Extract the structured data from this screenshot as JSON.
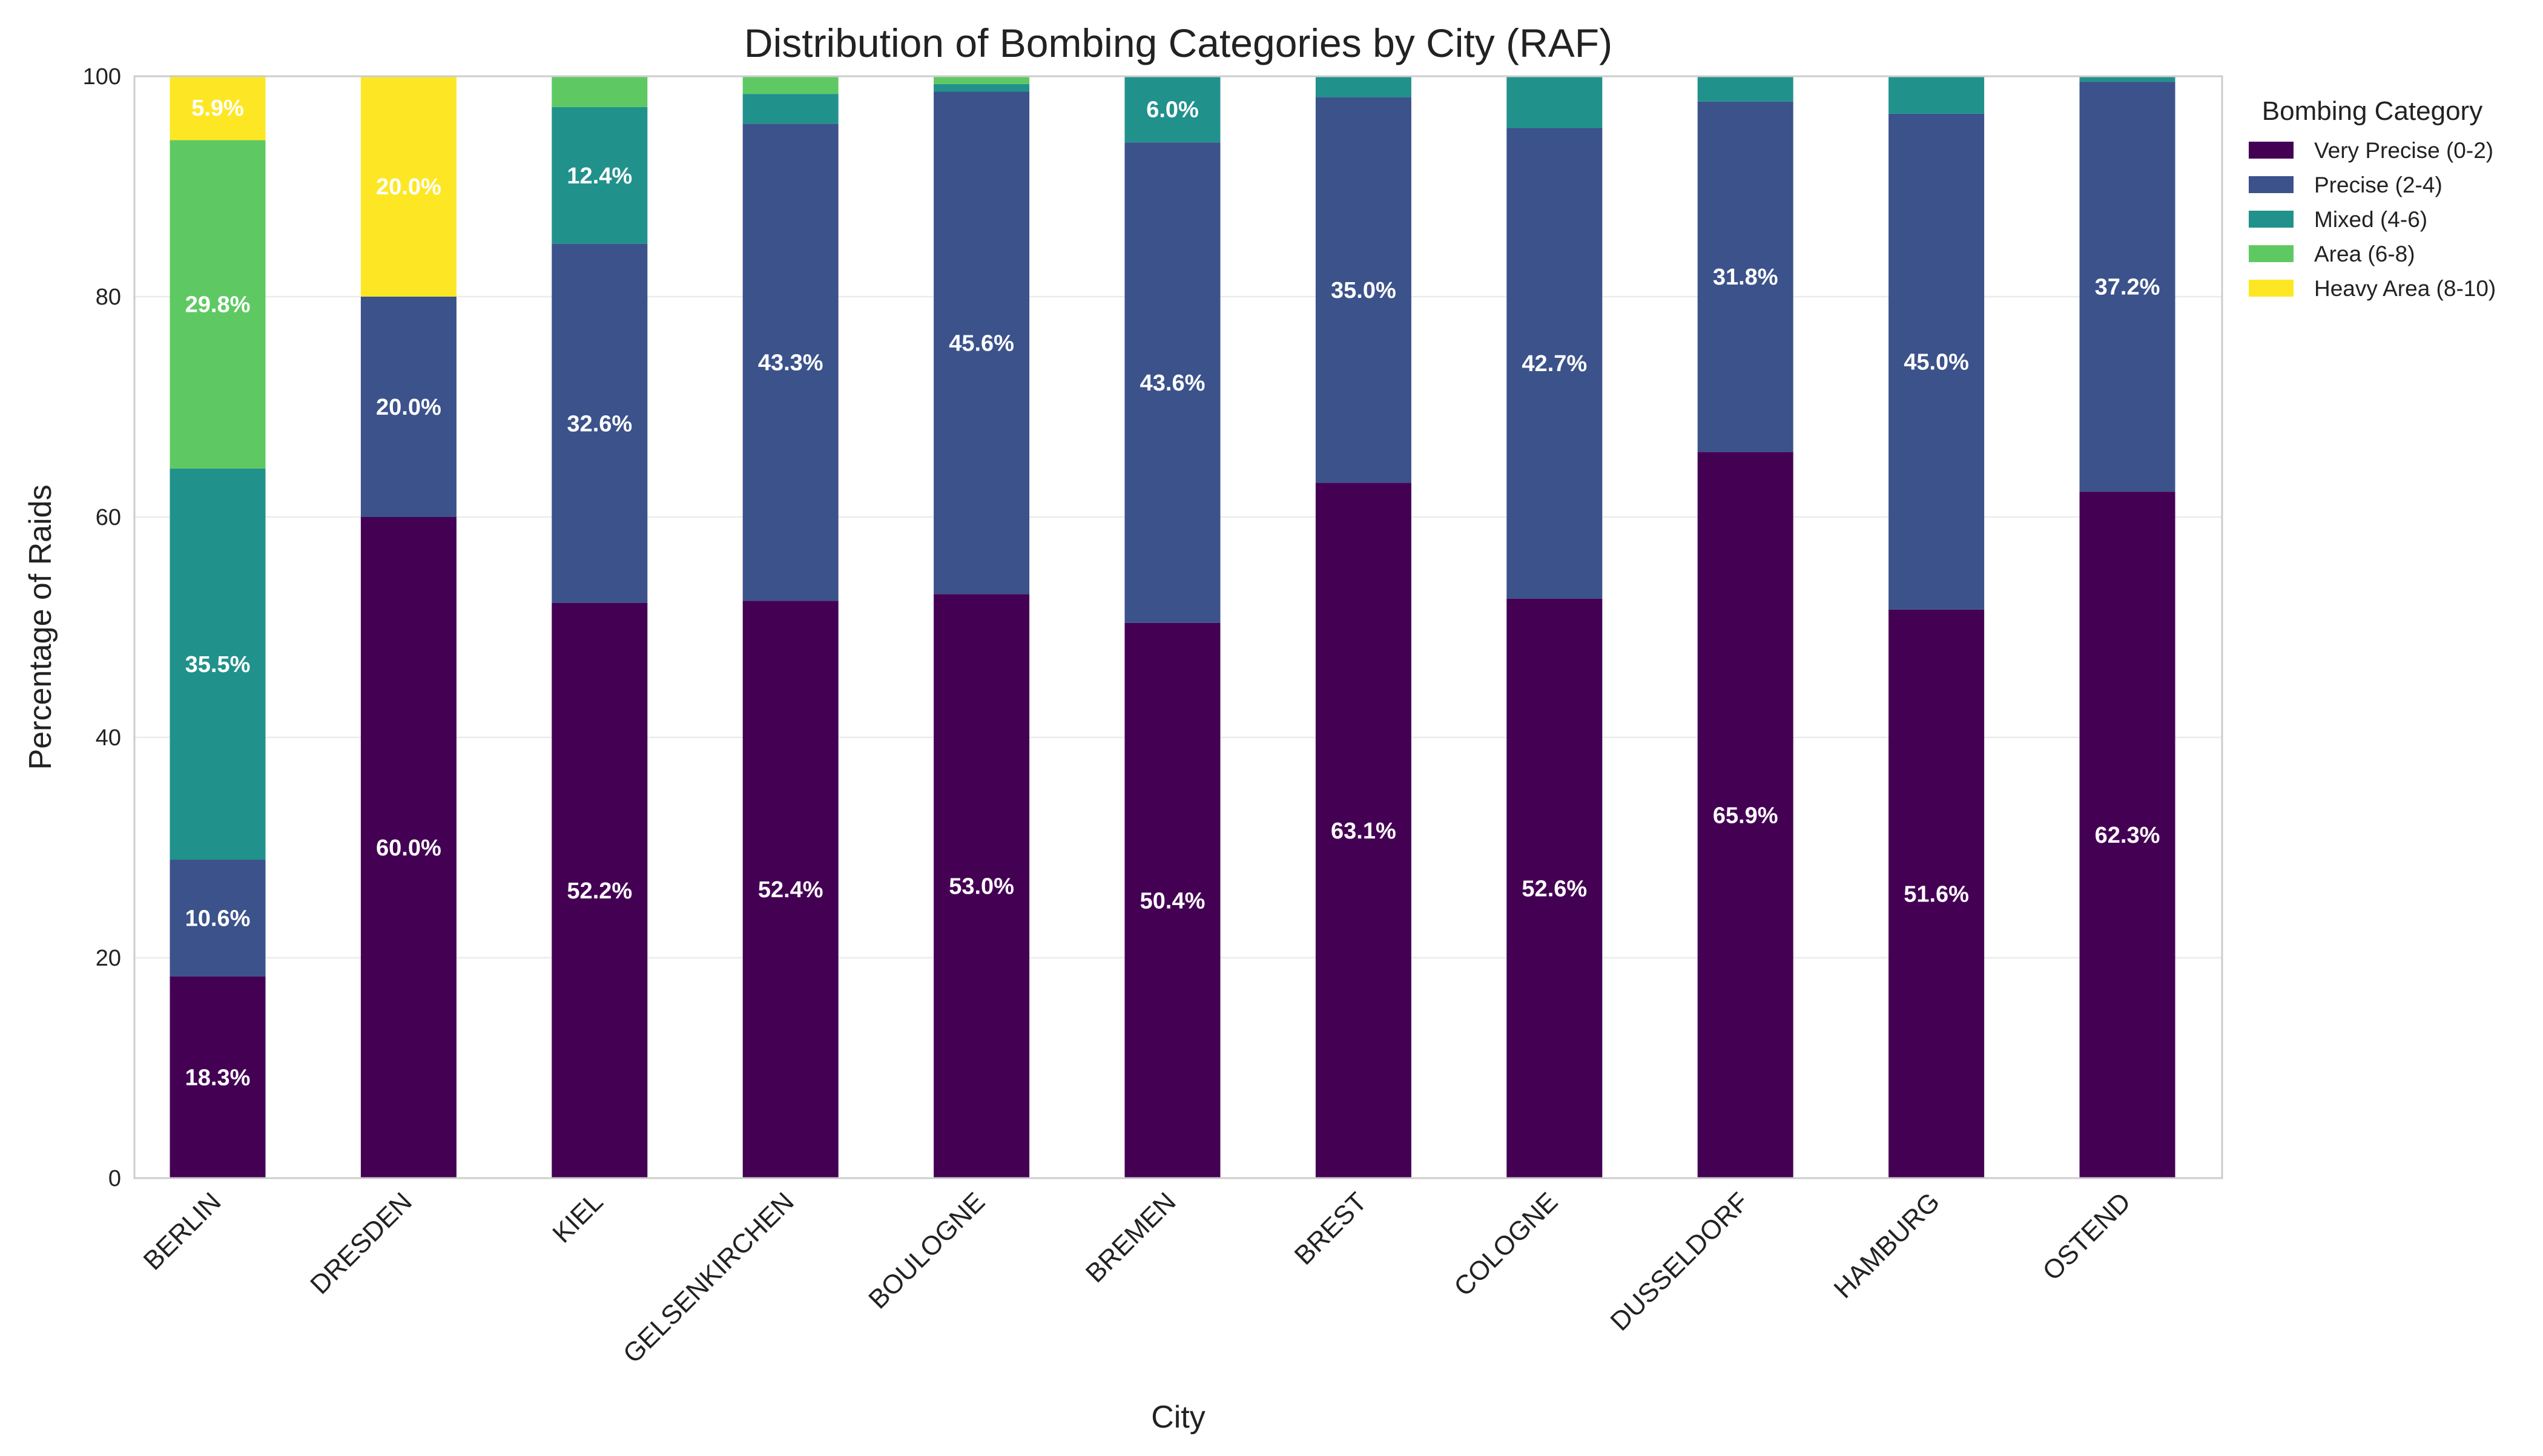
{
  "chart_data": {
    "type": "bar",
    "stacked": true,
    "title": "Distribution of Bombing Categories by City (RAF)",
    "xlabel": "City",
    "ylabel": "Percentage of Raids",
    "ylim": [
      0,
      100
    ],
    "yticks": [
      0,
      20,
      40,
      60,
      80,
      100
    ],
    "grid": true,
    "legend_title": "Bombing Category",
    "legend_position": "outside top-right",
    "categories": [
      "BERLIN",
      "DRESDEN",
      "KIEL",
      "GELSENKIRCHEN",
      "BOULOGNE",
      "BREMEN",
      "BREST",
      "COLOGNE",
      "DUSSELDORF",
      "HAMBURG",
      "OSTEND"
    ],
    "series": [
      {
        "name": "Very Precise (0-2)",
        "color": "#440154",
        "values": [
          18.3,
          60.0,
          52.2,
          52.4,
          53.0,
          50.4,
          63.1,
          52.6,
          65.9,
          51.6,
          62.3
        ]
      },
      {
        "name": "Precise (2-4)",
        "color": "#3b528b",
        "values": [
          10.6,
          20.0,
          32.6,
          43.3,
          45.6,
          43.6,
          35.0,
          42.7,
          31.8,
          45.0,
          37.2
        ]
      },
      {
        "name": "Mixed (4-6)",
        "color": "#21918c",
        "values": [
          35.5,
          0.0,
          12.4,
          2.7,
          0.7,
          6.0,
          1.9,
          4.7,
          2.3,
          3.4,
          0.5
        ]
      },
      {
        "name": "Area (6-8)",
        "color": "#5ec962",
        "values": [
          29.8,
          0.0,
          2.8,
          1.6,
          0.7,
          0.0,
          0.0,
          0.0,
          0.0,
          0.0,
          0.0
        ]
      },
      {
        "name": "Heavy Area (8-10)",
        "color": "#fde725",
        "values": [
          5.9,
          20.0,
          0.0,
          0.0,
          0.0,
          0.0,
          0.0,
          0.0,
          0.0,
          0.0,
          0.0
        ]
      }
    ],
    "data_labels": [
      [
        "18.3%",
        "60.0%",
        "52.2%",
        "52.4%",
        "53.0%",
        "50.4%",
        "63.1%",
        "52.6%",
        "65.9%",
        "51.6%",
        "62.3%"
      ],
      [
        "10.6%",
        "20.0%",
        "32.6%",
        "43.3%",
        "45.6%",
        "43.6%",
        "35.0%",
        "42.7%",
        "31.8%",
        "45.0%",
        "37.2%"
      ],
      [
        "35.5%",
        "",
        "12.4%",
        "",
        "",
        "6.0%",
        "",
        "",
        "",
        "",
        ""
      ],
      [
        "29.8%",
        "",
        "",
        "",
        "",
        "",
        "",
        "",
        "",
        "",
        ""
      ],
      [
        "5.9%",
        "20.0%",
        "",
        "",
        "",
        "",
        "",
        "",
        "",
        "",
        ""
      ]
    ]
  }
}
